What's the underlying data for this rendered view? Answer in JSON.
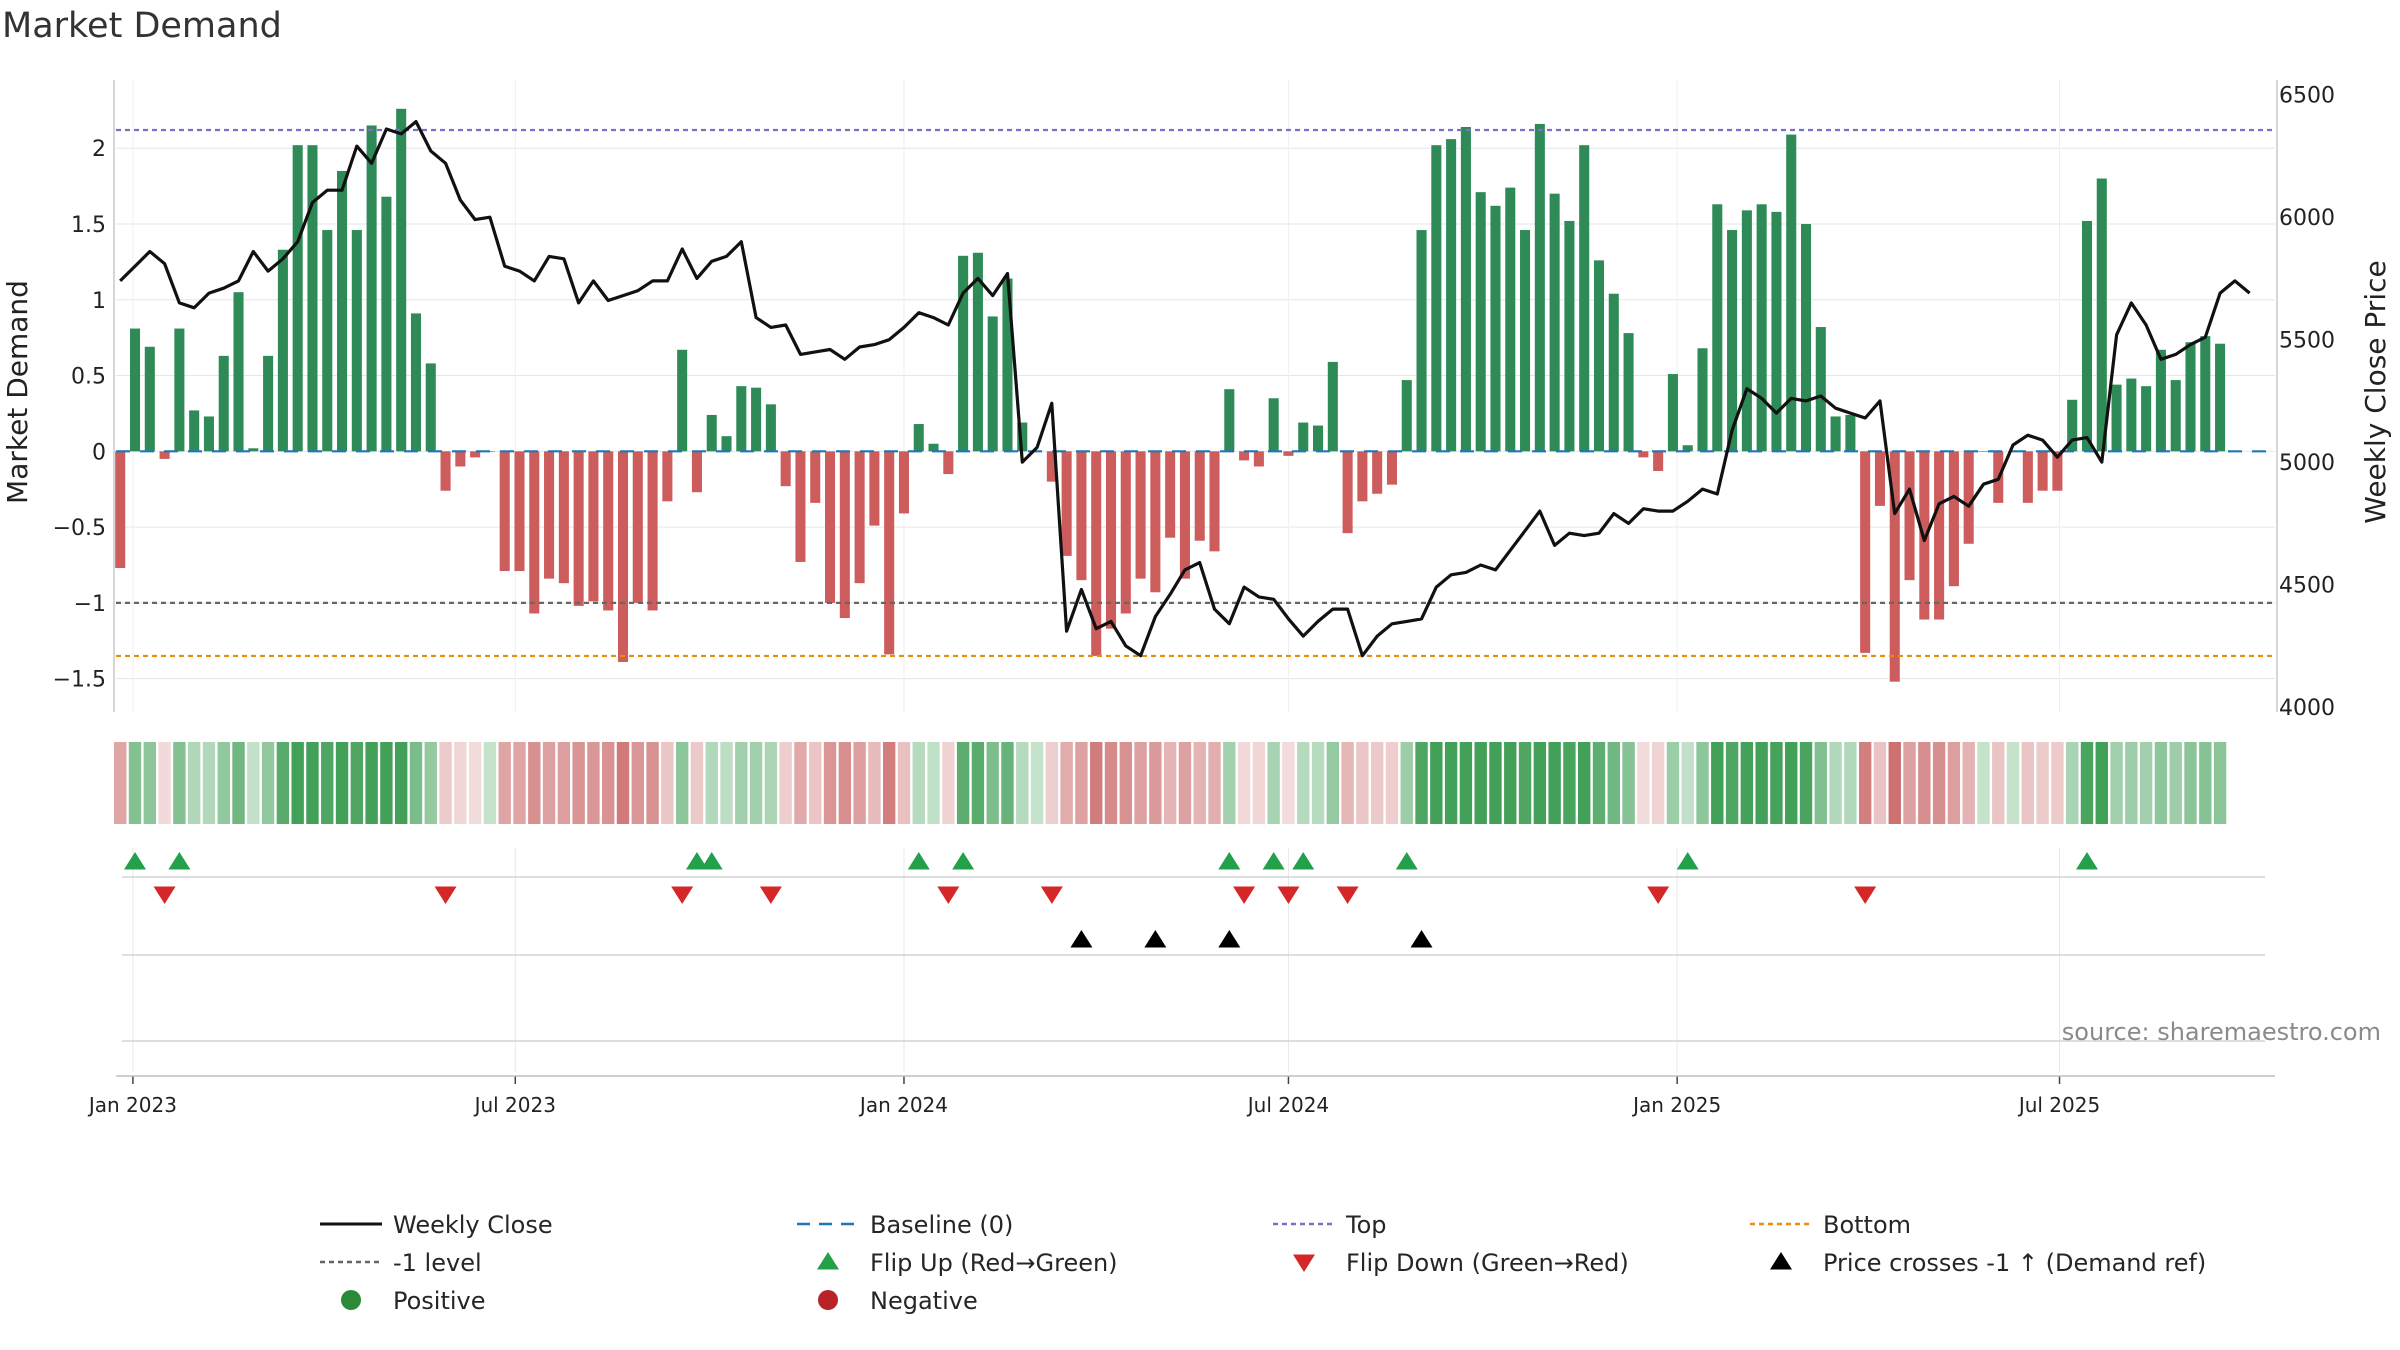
{
  "chart_data": {
    "type": "bar",
    "title": "Market Demand",
    "ylabel": "Market Demand",
    "y2label": "Weekly Close Price",
    "ylim": [
      -1.72,
      2.45
    ],
    "y2lim": [
      3980,
      6560
    ],
    "yticks": [
      2,
      1.5,
      1,
      0.5,
      0,
      -0.5,
      -1,
      -1.5
    ],
    "ytick_labels": [
      "2",
      "1.5",
      "1",
      "0.5",
      "0",
      "−0.5",
      "−1",
      "−1.5"
    ],
    "y2ticks": [
      6500,
      6000,
      5500,
      5000,
      4500,
      4000
    ],
    "y2tick_labels": [
      "6500",
      "6000",
      "5500",
      "5000",
      "4500",
      "4000"
    ],
    "x_start": "2022-12-26",
    "week_step_days": 7,
    "x_range": [
      "2022-12-24",
      "2025-10-11"
    ],
    "xticks": [
      "2023-01-01",
      "2023-07-01",
      "2024-01-01",
      "2024-07-01",
      "2025-01-01",
      "2025-07-01"
    ],
    "xtick_labels": [
      "Jan 2023",
      "Jul 2023",
      "Jan 2024",
      "Jul 2024",
      "Jan 2025",
      "Jul 2025"
    ],
    "reference_lines": {
      "top": 2.12,
      "baseline": 0,
      "minus_one": -1,
      "bottom": -1.35
    },
    "demand": [
      -0.77,
      0.81,
      0.69,
      -0.05,
      0.81,
      0.27,
      0.23,
      0.63,
      1.05,
      0.02,
      0.63,
      1.33,
      2.02,
      2.02,
      1.46,
      1.85,
      1.46,
      2.15,
      1.68,
      2.26,
      0.91,
      0.58,
      -0.26,
      -0.1,
      -0.04,
      0,
      -0.79,
      -0.79,
      -1.07,
      -0.84,
      -0.87,
      -1.02,
      -0.99,
      -1.05,
      -1.39,
      -1.0,
      -1.05,
      -0.33,
      0.67,
      -0.27,
      0.24,
      0.1,
      0.43,
      0.42,
      0.31,
      -0.23,
      -0.73,
      -0.34,
      -1.0,
      -1.1,
      -0.87,
      -0.49,
      -1.34,
      -0.41,
      0.18,
      0.05,
      -0.15,
      1.29,
      1.31,
      0.89,
      1.14,
      0.19,
      0.0,
      -0.2,
      -0.69,
      -0.85,
      -1.35,
      -1.17,
      -1.07,
      -0.84,
      -0.93,
      -0.57,
      -0.84,
      -0.59,
      -0.66,
      0.41,
      -0.06,
      -0.1,
      0.35,
      -0.03,
      0.19,
      0.17,
      0.59,
      -0.54,
      -0.33,
      -0.28,
      -0.22,
      0.47,
      1.46,
      2.02,
      2.06,
      2.14,
      1.71,
      1.62,
      1.74,
      1.46,
      2.16,
      1.7,
      1.52,
      2.02,
      1.26,
      1.04,
      0.78,
      -0.04,
      -0.13,
      0.51,
      0.04,
      0.68,
      1.63,
      1.46,
      1.59,
      1.63,
      1.58,
      2.09,
      1.5,
      0.82,
      0.23,
      0.24,
      -1.33,
      -0.36,
      -1.52,
      -0.85,
      -1.11,
      -1.11,
      -0.89,
      -0.61,
      0.0,
      -0.34,
      0.0,
      -0.34,
      -0.26,
      -0.26,
      0.34,
      1.52,
      1.8,
      0.44,
      0.48,
      0.43,
      0.67,
      0.47,
      0.72,
      0.76,
      0.71
    ],
    "series": [
      {
        "name": "Weekly Close",
        "values": [
          5740,
          5800,
          5860,
          5810,
          5650,
          5630,
          5690,
          5710,
          5740,
          5860,
          5780,
          5830,
          5900,
          6060,
          6110,
          6110,
          6290,
          6220,
          6360,
          6340,
          6390,
          6270,
          6220,
          6070,
          5990,
          6000,
          5800,
          5780,
          5740,
          5840,
          5830,
          5650,
          5740,
          5660,
          5680,
          5700,
          5740,
          5740,
          5870,
          5750,
          5820,
          5840,
          5900,
          5590,
          5550,
          5560,
          5440,
          5450,
          5460,
          5420,
          5470,
          5480,
          5500,
          5550,
          5610,
          5590,
          5560,
          5690,
          5750,
          5680,
          5770,
          5000,
          5060,
          5240,
          4310,
          4480,
          4320,
          4350,
          4250,
          4210,
          4370,
          4460,
          4560,
          4590,
          4400,
          4340,
          4490,
          4450,
          4440,
          4360,
          4290,
          4350,
          4400,
          4400,
          4210,
          4290,
          4340,
          4350,
          4360,
          4490,
          4540,
          4550,
          4580,
          4560,
          4640,
          4720,
          4800,
          4660,
          4710,
          4700,
          4710,
          4790,
          4750,
          4810,
          4800,
          4800,
          4840,
          4890,
          4870,
          5130,
          5300,
          5260,
          5200,
          5260,
          5250,
          5270,
          5220,
          5200,
          5180,
          5250,
          4790,
          4890,
          4680,
          4830,
          4860,
          4820,
          4910,
          4930,
          5070,
          5110,
          5090,
          5020,
          5090,
          5100,
          5000,
          5520,
          5650,
          5560,
          5420,
          5440,
          5480,
          5510,
          5690,
          5740,
          5690
        ]
      }
    ],
    "flip_up_weeks": [
      1,
      4,
      39,
      40,
      54,
      57,
      75,
      78,
      80,
      87,
      106,
      133
    ],
    "flip_down_weeks": [
      3,
      22,
      38,
      44,
      56,
      63,
      76,
      79,
      83,
      104,
      118
    ],
    "price_cross_weeks": [
      65,
      70,
      75,
      88
    ],
    "legend": [
      {
        "key": "weekly_close",
        "label": "Weekly Close",
        "color": "#111111"
      },
      {
        "key": "baseline",
        "label": "Baseline (0)",
        "color": "#1f77b4"
      },
      {
        "key": "top",
        "label": "Top",
        "color": "#7b6fc9"
      },
      {
        "key": "bottom",
        "label": "Bottom",
        "color": "#ee8a10"
      },
      {
        "key": "minus_one",
        "label": "-1 level",
        "color": "#666666"
      },
      {
        "key": "flip_up",
        "label": "Flip Up (Red→Green)",
        "color": "#22a04a"
      },
      {
        "key": "flip_down",
        "label": "Flip Down (Green→Red)",
        "color": "#d62728"
      },
      {
        "key": "price_cross",
        "label": "Price crosses -1 ↑ (Demand ref)",
        "color": "#000000"
      },
      {
        "key": "positive",
        "label": "Positive",
        "color": "#2a8a35"
      },
      {
        "key": "negative",
        "label": "Negative",
        "color": "#b8232a"
      }
    ],
    "source": "source: sharemaestro.com"
  },
  "colors": {
    "positive_bar": "#2e8b57",
    "negative_bar": "#cd5c5c",
    "grid": "#e6e6e6",
    "axis": "#bbbbbb"
  }
}
